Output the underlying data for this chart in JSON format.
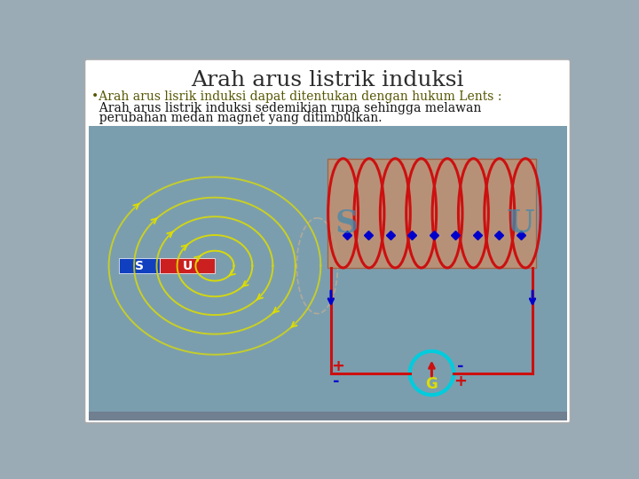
{
  "title": "Arah arus listrik induksi",
  "bullet": "•Arah arus lisrik induksi dapat ditentukan dengan hukum Lents :",
  "body1": "  Arah arus listrik induksi sedemikian rupa sehingga melawan",
  "body2": "  perubahan medan magnet yang ditimbulkan.",
  "outer_bg": "#9aabb5",
  "slide_bg": "white",
  "content_bg": "#7b9eae",
  "title_color": "#2c2c2c",
  "bullet_color": "#555500",
  "body_color": "#111111",
  "magnet_s_color": "#1040c0",
  "magnet_u_color": "#cc2020",
  "magnet_text_color": "white",
  "field_color": "#dddd00",
  "coil_body_color": "#c09070",
  "coil_body_edge": "#a06040",
  "coil_wire_color": "#cc1010",
  "coil_s_u_color": "#4488aa",
  "blue_dot_color": "#0000cc",
  "circuit_color": "#cc1010",
  "circuit_arrow_color": "#0000cc",
  "galv_circle_color": "#00ccdd",
  "galv_label_color": "#dddd00",
  "galv_arrow_color": "#cc1010",
  "plus_red": "#cc1010",
  "minus_blue": "#0000cc",
  "bottom_bar_color": "#708090",
  "connect_ellipse_color": "#c8b090"
}
